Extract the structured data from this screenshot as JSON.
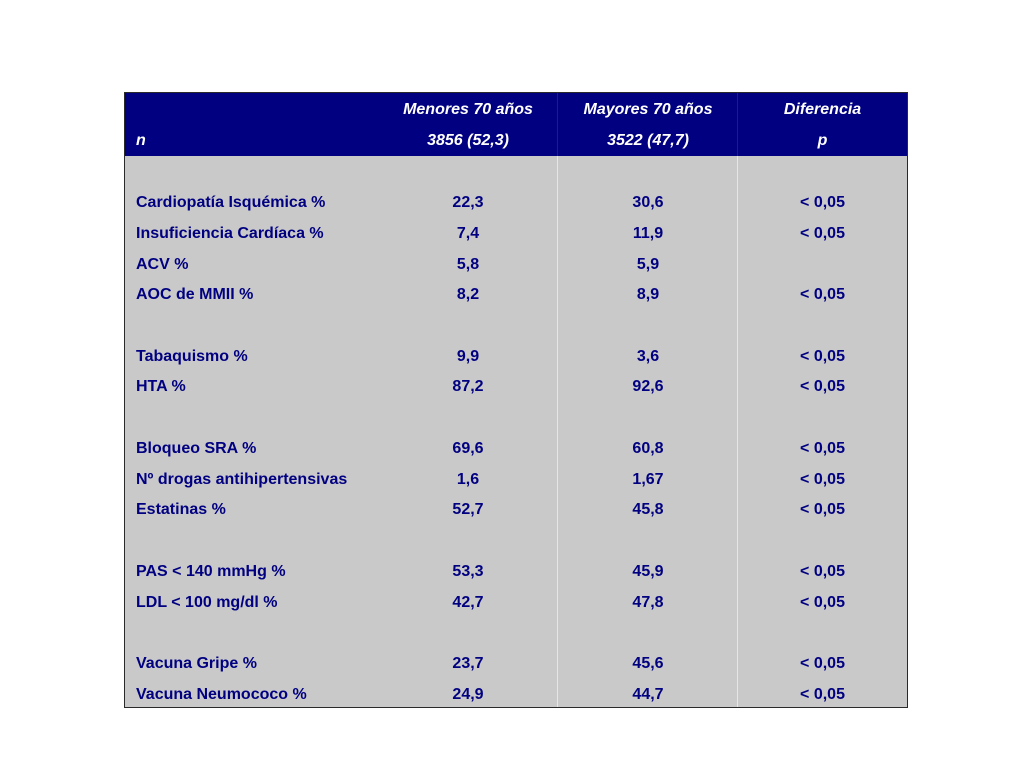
{
  "header": {
    "row1": [
      "",
      "Menores 70 años",
      "Mayores 70 años",
      "Diferencia"
    ],
    "row2": [
      "n",
      "3856 (52,3)",
      "3522 (47,7)",
      "p"
    ]
  },
  "rows": [
    [
      "Cardiopatía Isquémica %",
      "22,3",
      "30,6",
      "< 0,05"
    ],
    [
      "Insuficiencia Cardíaca %",
      "7,4",
      "11,9",
      "< 0,05"
    ],
    [
      "ACV %",
      "5,8",
      "5,9",
      ""
    ],
    [
      "AOC de MMII %",
      "8,2",
      "8,9",
      "< 0,05"
    ],
    [
      "Tabaquismo %",
      "9,9",
      "3,6",
      "< 0,05"
    ],
    [
      "HTA %",
      "87,2",
      "92,6",
      "< 0,05"
    ],
    [
      "Bloqueo SRA %",
      "69,6",
      "60,8",
      "< 0,05"
    ],
    [
      "Nº drogas antihipertensivas",
      "1,6",
      "1,67",
      "< 0,05"
    ],
    [
      "Estatinas %",
      "52,7",
      "45,8",
      "< 0,05"
    ],
    [
      "PAS < 140 mmHg %",
      "53,3",
      "45,9",
      "< 0,05"
    ],
    [
      "LDL < 100 mg/dl %",
      "42,7",
      "47,8",
      "< 0,05"
    ],
    [
      "Vacuna Gripe %",
      "23,7",
      "45,6",
      "< 0,05"
    ],
    [
      "Vacuna Neumococo %",
      "24,9",
      "44,7",
      "< 0,05"
    ]
  ],
  "colors": {
    "header_bg": "#000080",
    "header_text": "#ffffff",
    "body_bg": "#c9c9c9",
    "body_text": "#000080"
  }
}
